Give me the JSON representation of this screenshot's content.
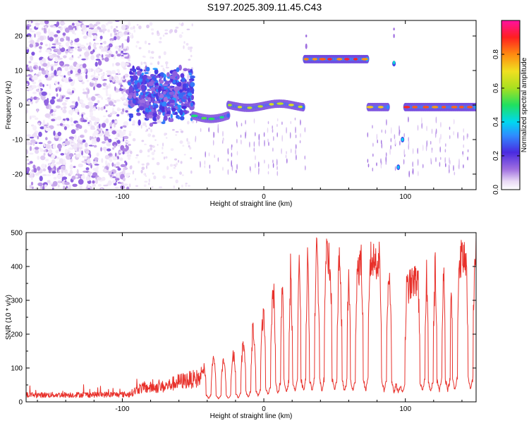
{
  "title": "S197.2025.309.11.45.C43",
  "chart_data": [
    {
      "type": "heatmap",
      "name": "spectrogram",
      "xlabel": "Height of straight line (km)",
      "ylabel": "Frequency (Hz)",
      "xlim": [
        -168,
        150
      ],
      "ylim": [
        -24.5,
        24.5
      ],
      "x_ticks": [
        -100,
        0,
        100
      ],
      "y_ticks": [
        -20,
        -10,
        0,
        10,
        20
      ],
      "colorbar": {
        "label": "Normalized spectral amplitude",
        "range": [
          0,
          1
        ],
        "ticks": [
          0,
          0.2,
          0.4,
          0.6,
          0.8
        ],
        "tick_labels": [
          "0.0",
          "0.2",
          "0.4",
          "0.6",
          "0.8"
        ]
      },
      "features": [
        {
          "name": "noise",
          "x_range": [
            -168,
            -95
          ],
          "freq": null,
          "amplitude": 0.05
        },
        {
          "name": "onset burst",
          "x_range": [
            -95,
            -50
          ],
          "freq": 3,
          "amplitude": 0.25
        },
        {
          "name": "dip",
          "x_range": [
            -50,
            -25
          ],
          "freq": -3,
          "amplitude": 0.5
        },
        {
          "name": "line",
          "x_range": [
            -25,
            28
          ],
          "freq": 0,
          "amplitude": 0.55
        },
        {
          "name": "line high",
          "x_range": [
            29,
            73
          ],
          "freq": 13,
          "amplitude": 0.9
        },
        {
          "name": "line",
          "x_range": [
            74,
            88
          ],
          "freq": -0.5,
          "amplitude": 0.7
        },
        {
          "name": "spot",
          "x_range": [
            90,
            93
          ],
          "freq": 12,
          "amplitude": 0.3
        },
        {
          "name": "spot",
          "x_range": [
            96,
            100
          ],
          "freq": -10,
          "amplitude": 0.3
        },
        {
          "name": "spot",
          "x_range": [
            93,
            97
          ],
          "freq": -18,
          "amplitude": 0.25
        },
        {
          "name": "line",
          "x_range": [
            100,
            150
          ],
          "freq": -0.5,
          "amplitude": 0.85
        }
      ]
    },
    {
      "type": "line",
      "name": "snr",
      "xlabel": "Height of straight line (km)",
      "ylabel": "SNR (10 * v/v)",
      "xlim": [
        -168,
        150
      ],
      "ylim": [
        0,
        500
      ],
      "x_ticks": [
        -100,
        0,
        100
      ],
      "y_ticks": [
        0,
        100,
        200,
        300,
        400,
        500
      ],
      "color": "#e8302a",
      "profile": [
        {
          "x": -168,
          "y": 20
        },
        {
          "x": -95,
          "y": 22
        },
        {
          "x": -88,
          "y": 40
        },
        {
          "x": -70,
          "y": 45
        },
        {
          "x": -60,
          "y": 60
        },
        {
          "x": -45,
          "y": 70
        },
        {
          "x": -40,
          "y": 130
        },
        {
          "x": -30,
          "y": 110
        },
        {
          "x": -20,
          "y": 140
        },
        {
          "x": -10,
          "y": 190
        },
        {
          "x": 0,
          "y": 250
        },
        {
          "x": 5,
          "y": 300
        },
        {
          "x": 10,
          "y": 330
        },
        {
          "x": 20,
          "y": 390
        },
        {
          "x": 30,
          "y": 410
        },
        {
          "x": 40,
          "y": 430
        },
        {
          "x": 50,
          "y": 410
        },
        {
          "x": 60,
          "y": 380
        },
        {
          "x": 70,
          "y": 410
        },
        {
          "x": 80,
          "y": 420
        },
        {
          "x": 85,
          "y": 400
        },
        {
          "x": 95,
          "y": 320
        },
        {
          "x": 100,
          "y": 330
        },
        {
          "x": 110,
          "y": 370
        },
        {
          "x": 120,
          "y": 390
        },
        {
          "x": 130,
          "y": 420
        },
        {
          "x": 150,
          "y": 430
        }
      ],
      "dropouts": [
        -39,
        -32,
        -25,
        -18,
        -11,
        -4,
        3,
        10,
        16,
        22,
        28,
        34,
        41,
        50,
        57,
        63,
        72,
        85,
        92,
        95,
        98,
        112,
        118,
        124,
        130,
        135,
        146
      ]
    }
  ]
}
